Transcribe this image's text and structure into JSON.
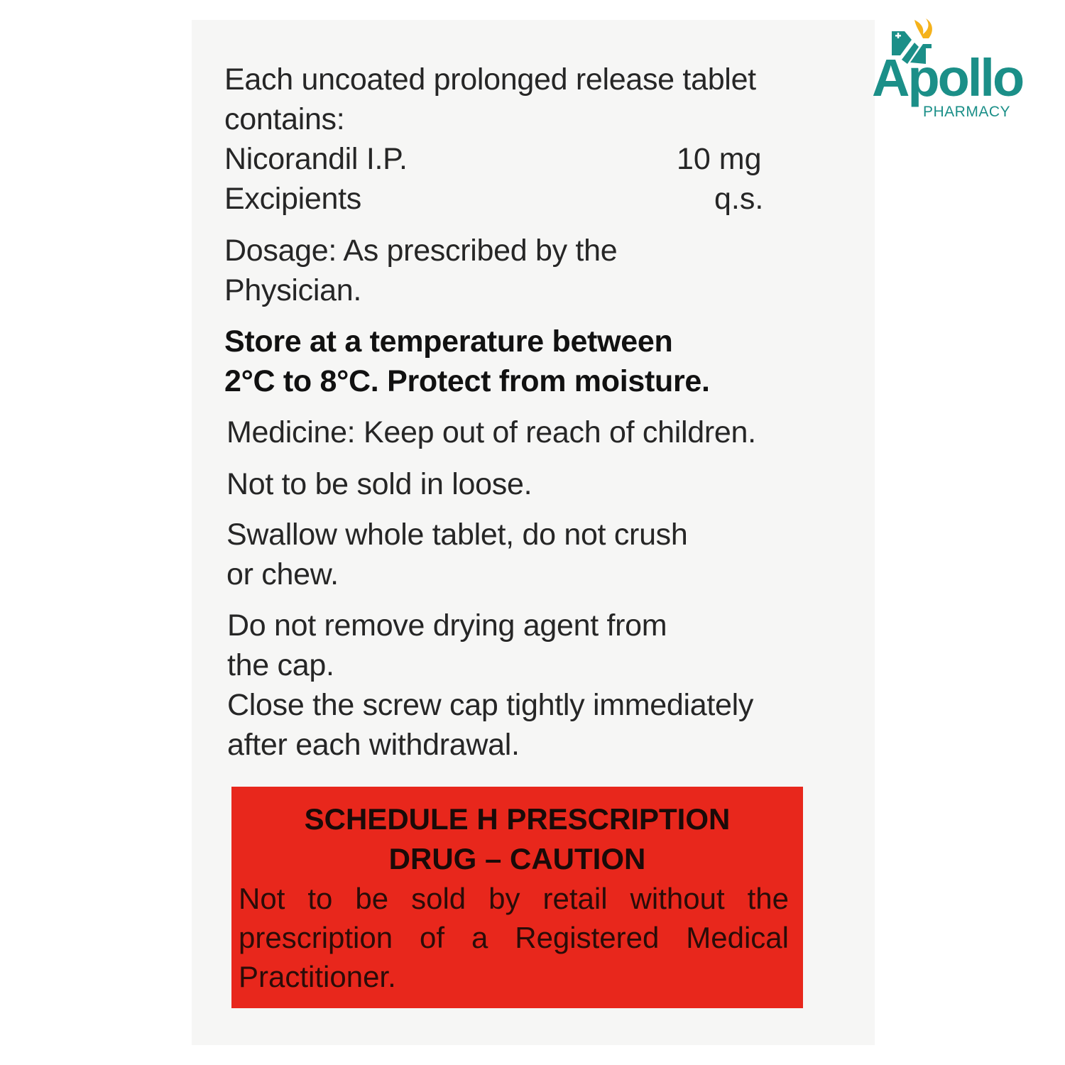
{
  "logo": {
    "brand": "Apollo",
    "sub": "PHARMACY",
    "color": "#1b8f88",
    "flame_color": "#f5b21b"
  },
  "composition": {
    "intro_line1": "Each uncoated prolonged release tablet",
    "intro_line2": "contains:",
    "rows": [
      {
        "name": "Nicorandil I.P.",
        "amount": "10 mg"
      },
      {
        "name": "Excipients",
        "amount": "q.s."
      }
    ]
  },
  "dosage": [
    "Dosage: As prescribed by the",
    "Physician."
  ],
  "storage": [
    "Store at a temperature between",
    "2°C to 8°C. Protect from moisture."
  ],
  "warnings": [
    "Medicine: Keep out of reach of children.",
    "Not to be sold in loose.",
    "Swallow whole tablet, do not crush",
    "or chew.",
    "Do not remove drying agent from",
    "the cap.",
    "Close the screw cap tightly immediately",
    "after each withdrawal."
  ],
  "schedule": {
    "title1": "SCHEDULE H PRESCRIPTION",
    "title2": "DRUG – CAUTION",
    "body": "Not to be sold by retail without the prescription of a Registered Medical Practitioner.",
    "color": "#e8271c"
  }
}
